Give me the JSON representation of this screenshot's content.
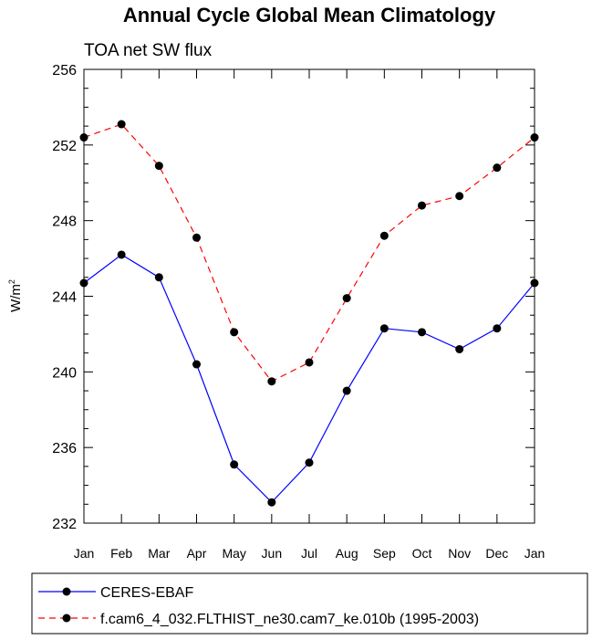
{
  "chart_data": {
    "type": "line",
    "title": "Annual Cycle Global Mean Climatology",
    "subtitle": "TOA net SW flux",
    "xlabel": "",
    "ylabel": "W/m",
    "ylabel_superscript": "2",
    "ylim": [
      232,
      256
    ],
    "yticks": [
      232,
      236,
      240,
      244,
      248,
      252,
      256
    ],
    "categories": [
      "Jan",
      "Feb",
      "Mar",
      "Apr",
      "May",
      "Jun",
      "Jul",
      "Aug",
      "Sep",
      "Oct",
      "Nov",
      "Dec",
      "Jan"
    ],
    "series": [
      {
        "name": "CERES-EBAF",
        "color": "#0000ff",
        "dash": "solid",
        "values": [
          244.7,
          246.2,
          245.0,
          240.4,
          235.1,
          233.1,
          235.2,
          239.0,
          242.3,
          242.1,
          241.2,
          242.3,
          244.7
        ]
      },
      {
        "name": "f.cam6_4_032.FLTHIST_ne30.cam7_ke.010b (1995-2003)",
        "color": "#ff0000",
        "dash": "dashed",
        "values": [
          252.4,
          253.1,
          250.9,
          247.1,
          242.1,
          239.5,
          240.5,
          243.9,
          247.2,
          248.8,
          249.3,
          250.8,
          252.4
        ]
      }
    ]
  }
}
